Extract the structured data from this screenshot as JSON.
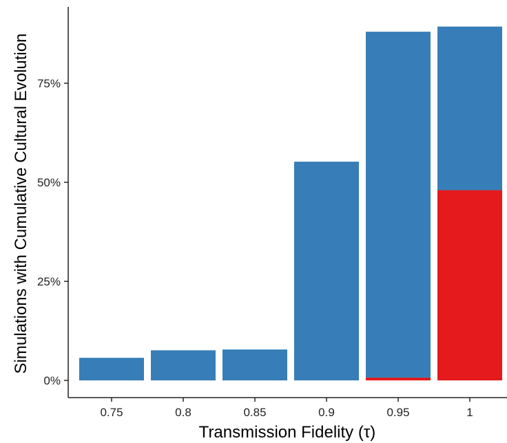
{
  "chart_data": {
    "type": "bar",
    "stacked": true,
    "title": "",
    "xlabel": "Transmission Fidelity (τ)",
    "ylabel": "Simulations with Cumulative Cultural Evolution",
    "categories": [
      "0.75",
      "0.8",
      "0.85",
      "0.9",
      "0.95",
      "1"
    ],
    "series": [
      {
        "color": "#e41a1c",
        "values": [
          0,
          0,
          0,
          0,
          0.7,
          48
        ]
      },
      {
        "color": "#377eb8",
        "values": [
          5.7,
          7.6,
          7.8,
          55.2,
          87.3,
          41.3
        ]
      }
    ],
    "ylim": [
      0,
      90
    ],
    "yticks": [
      {
        "value": 0,
        "label": "0%"
      },
      {
        "value": 25,
        "label": "25%"
      },
      {
        "value": 50,
        "label": "50%"
      },
      {
        "value": 75,
        "label": "75%"
      }
    ],
    "grid": false,
    "legend": "none"
  }
}
